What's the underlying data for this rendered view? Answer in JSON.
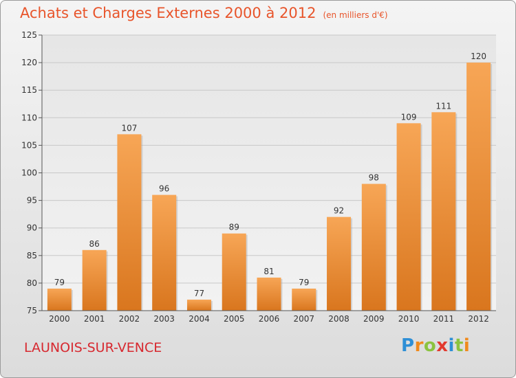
{
  "header": {
    "title": "Achats et Charges Externes 2000 à 2012",
    "unit_note": "(en milliers d'€)"
  },
  "footer": {
    "place": "LAUNOIS-SUR-VENCE",
    "brand_letters": [
      {
        "ch": "P",
        "color": "#2e8fd6"
      },
      {
        "ch": "r",
        "color": "#f08a1c"
      },
      {
        "ch": "o",
        "color": "#8bc33f"
      },
      {
        "ch": "x",
        "color": "#e23a2e"
      },
      {
        "ch": "i",
        "color": "#2e8fd6"
      },
      {
        "ch": "t",
        "color": "#8bc33f"
      },
      {
        "ch": "i",
        "color": "#f08a1c"
      }
    ]
  },
  "chart_data": {
    "type": "bar",
    "title": "Achats et Charges Externes 2000 à 2012",
    "subtitle": "(en milliers d'€)",
    "xlabel": "",
    "ylabel": "",
    "categories": [
      "2000",
      "2001",
      "2002",
      "2003",
      "2004",
      "2005",
      "2006",
      "2007",
      "2008",
      "2009",
      "2010",
      "2011",
      "2012"
    ],
    "values": [
      79,
      86,
      107,
      96,
      77,
      89,
      81,
      79,
      92,
      98,
      109,
      111,
      120
    ],
    "ylim": [
      75,
      125
    ],
    "yticks": [
      75,
      80,
      85,
      90,
      95,
      100,
      105,
      110,
      115,
      120,
      125
    ],
    "grid": true,
    "legend": "none",
    "bar_color_top": "#f7a656",
    "bar_color_bottom": "#d9761e"
  }
}
